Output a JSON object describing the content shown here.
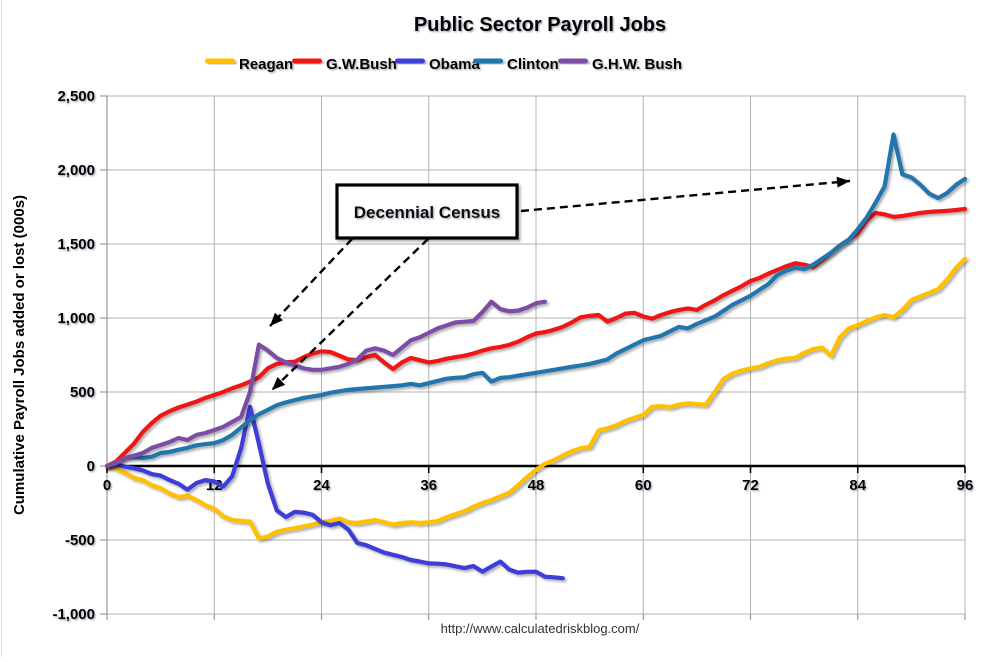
{
  "page": {
    "background": "#ffffff",
    "border_color": "#d9d9d9"
  },
  "chart_data": {
    "type": "line",
    "title": "Public Sector Payroll Jobs",
    "ylabel": "Cumulative Payroll Jobs added or lost (000s)",
    "xlabel": "",
    "footer_url": "http://www.calculatedriskblog.com/",
    "annotation_label": "Decennial Census",
    "xlim": [
      0,
      96
    ],
    "ylim": [
      -1000,
      2500
    ],
    "x_ticks": [
      0,
      12,
      24,
      36,
      48,
      60,
      72,
      84,
      96
    ],
    "y_tick_values": [
      2500,
      2000,
      1500,
      1000,
      500,
      0,
      -500,
      -1000
    ],
    "y_tick_labels": [
      "2,500",
      "2,000",
      "1,500",
      "1,000",
      "500",
      "0",
      "-500",
      "-1,000"
    ],
    "grid": true,
    "legend_position": "top",
    "colors": {
      "grid": "#b3b3b3",
      "axis": "#999999",
      "zero_line": "#000000",
      "text": "#000000",
      "url_text": "#333333",
      "annotation_border": "#000000"
    },
    "series": [
      {
        "name": "Reagan",
        "color": "#FFC000",
        "start_month": 0,
        "values": [
          0,
          -15,
          -45,
          -80,
          -95,
          -130,
          -150,
          -185,
          -210,
          -200,
          -230,
          -265,
          -290,
          -340,
          -365,
          -370,
          -375,
          -490,
          -475,
          -445,
          -430,
          -420,
          -408,
          -395,
          -380,
          -370,
          -355,
          -380,
          -385,
          -375,
          -365,
          -380,
          -395,
          -385,
          -380,
          -385,
          -380,
          -372,
          -345,
          -325,
          -305,
          -275,
          -250,
          -230,
          -205,
          -180,
          -130,
          -75,
          -25,
          15,
          40,
          70,
          100,
          120,
          130,
          240,
          255,
          275,
          305,
          325,
          345,
          400,
          405,
          398,
          415,
          423,
          418,
          415,
          500,
          590,
          625,
          645,
          660,
          670,
          695,
          715,
          725,
          730,
          765,
          790,
          800,
          745,
          870,
          930,
          953,
          980,
          1005,
          1020,
          1005,
          1055,
          1120,
          1145,
          1170,
          1195,
          1260,
          1340,
          1400
        ]
      },
      {
        "name": "G.W.Bush",
        "color": "#F01414",
        "start_month": 0,
        "values": [
          0,
          30,
          90,
          150,
          230,
          290,
          340,
          370,
          395,
          415,
          435,
          460,
          480,
          500,
          525,
          545,
          570,
          600,
          660,
          690,
          700,
          705,
          735,
          760,
          775,
          770,
          745,
          720,
          715,
          735,
          750,
          700,
          655,
          700,
          730,
          715,
          700,
          710,
          725,
          735,
          745,
          760,
          780,
          795,
          805,
          818,
          840,
          870,
          895,
          905,
          920,
          940,
          970,
          1005,
          1015,
          1020,
          975,
          1000,
          1030,
          1035,
          1010,
          995,
          1020,
          1040,
          1055,
          1065,
          1055,
          1090,
          1120,
          1155,
          1185,
          1215,
          1250,
          1270,
          1300,
          1325,
          1350,
          1370,
          1360,
          1345,
          1390,
          1440,
          1490,
          1530,
          1575,
          1660,
          1710,
          1700,
          1683,
          1690,
          1700,
          1710,
          1717,
          1720,
          1724,
          1730,
          1737
        ]
      },
      {
        "name": "Obama",
        "color": "#3C3CD8",
        "start_month": 0,
        "values": [
          0,
          10,
          -5,
          -15,
          -30,
          -55,
          -65,
          -95,
          -120,
          -160,
          -115,
          -95,
          -105,
          -140,
          -70,
          120,
          400,
          150,
          -120,
          -300,
          -345,
          -310,
          -315,
          -330,
          -380,
          -400,
          -385,
          -430,
          -520,
          -535,
          -560,
          -585,
          -600,
          -615,
          -635,
          -645,
          -658,
          -660,
          -665,
          -678,
          -690,
          -676,
          -714,
          -680,
          -646,
          -700,
          -720,
          -715,
          -714,
          -748,
          -752,
          -758
        ]
      },
      {
        "name": "Clinton",
        "color": "#2176AE",
        "start_month": 0,
        "values": [
          0,
          20,
          55,
          60,
          55,
          62,
          88,
          95,
          110,
          122,
          140,
          148,
          155,
          175,
          210,
          260,
          310,
          350,
          380,
          410,
          430,
          445,
          460,
          470,
          480,
          495,
          505,
          515,
          520,
          525,
          530,
          535,
          540,
          545,
          555,
          545,
          560,
          575,
          590,
          595,
          600,
          620,
          630,
          570,
          595,
          600,
          610,
          620,
          630,
          640,
          650,
          660,
          670,
          680,
          690,
          705,
          720,
          760,
          790,
          820,
          850,
          865,
          880,
          910,
          940,
          930,
          960,
          985,
          1010,
          1050,
          1090,
          1120,
          1150,
          1190,
          1230,
          1290,
          1320,
          1340,
          1330,
          1360,
          1400,
          1440,
          1490,
          1530,
          1600,
          1680,
          1780,
          1890,
          2240,
          1970,
          1950,
          1900,
          1840,
          1810,
          1845,
          1900,
          1940
        ]
      },
      {
        "name": "G.H.W. Bush",
        "color": "#7C4EA5",
        "start_month": 0,
        "values": [
          0,
          20,
          54,
          70,
          88,
          122,
          142,
          162,
          189,
          176,
          210,
          223,
          243,
          264,
          297,
          331,
          500,
          820,
          780,
          730,
          700,
          680,
          660,
          650,
          650,
          660,
          670,
          690,
          720,
          780,
          795,
          780,
          750,
          800,
          850,
          870,
          900,
          930,
          950,
          970,
          975,
          980,
          1040,
          1110,
          1060,
          1045,
          1050,
          1070,
          1100,
          1110
        ]
      }
    ]
  }
}
